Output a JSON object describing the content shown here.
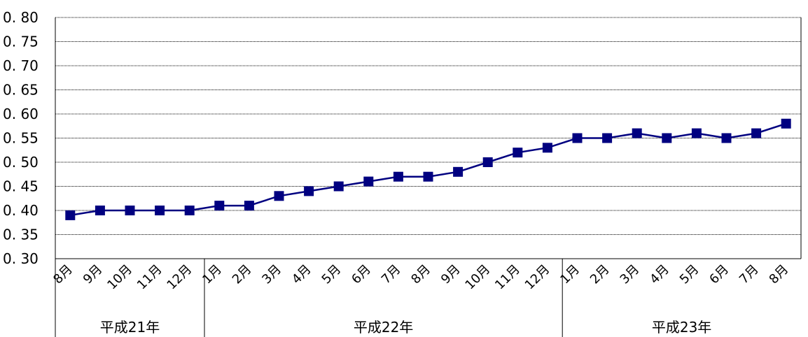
{
  "chart_data": {
    "type": "line",
    "ylim": [
      0.3,
      0.8
    ],
    "yticks": [
      "0.30",
      "0.35",
      "0.40",
      "0.45",
      "0.50",
      "0.55",
      "0.60",
      "0.65",
      "0.70",
      "0.75",
      "0.80"
    ],
    "grid": true,
    "categories": [
      "8月",
      "9月",
      "10月",
      "11月",
      "12月",
      "1月",
      "2月",
      "3月",
      "4月",
      "5月",
      "6月",
      "7月",
      "8月",
      "9月",
      "10月",
      "11月",
      "12月",
      "1月",
      "2月",
      "3月",
      "4月",
      "5月",
      "6月",
      "7月",
      "8月"
    ],
    "groups": [
      {
        "label": "平成21年",
        "count": 5
      },
      {
        "label": "平成22年",
        "count": 12
      },
      {
        "label": "平成23年",
        "count": 8
      }
    ],
    "series": [
      {
        "values": [
          0.39,
          0.4,
          0.4,
          0.4,
          0.4,
          0.41,
          0.41,
          0.43,
          0.44,
          0.45,
          0.46,
          0.47,
          0.47,
          0.48,
          0.5,
          0.52,
          0.53,
          0.55,
          0.55,
          0.56,
          0.55,
          0.56,
          0.55,
          0.56,
          0.58
        ],
        "color": "#000080",
        "marker": "square"
      }
    ]
  }
}
